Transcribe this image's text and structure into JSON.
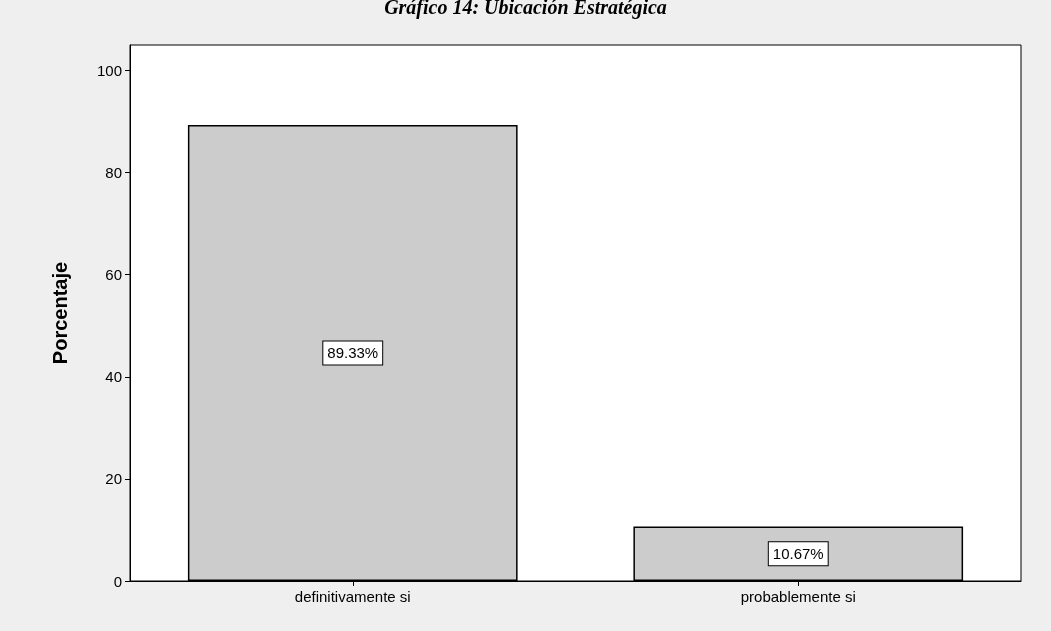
{
  "chart_data": {
    "type": "bar",
    "title": "Gráfico 14: Ubicación Estratégica",
    "ylabel": "Porcentaje",
    "categories": [
      "definitivamente si",
      "probablemente si"
    ],
    "values": [
      89.33,
      10.67
    ],
    "color": "#cccccc",
    "value_labels": [
      "89.33%",
      "10.67%"
    ],
    "ylim": [
      0,
      105
    ],
    "yticks": [
      0,
      20,
      40,
      60,
      80,
      100
    ],
    "grid": false
  }
}
